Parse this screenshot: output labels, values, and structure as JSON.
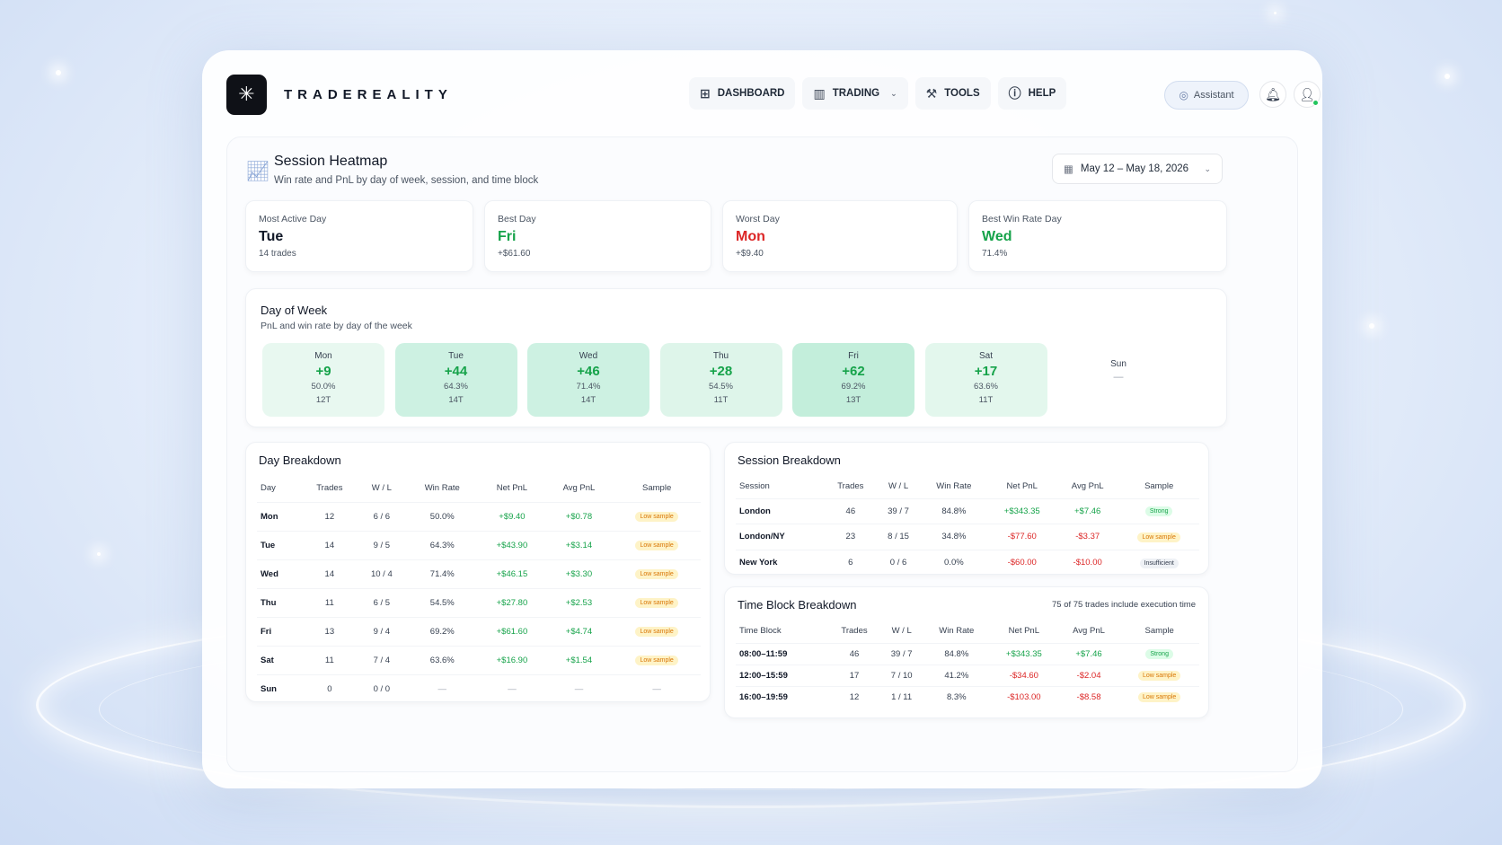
{
  "brand": {
    "name": "TRADEREALITY",
    "logo_icon": "sparkle-icon"
  },
  "nav": [
    {
      "label": "DASHBOARD",
      "icon": "grid-icon"
    },
    {
      "label": "TRADING",
      "icon": "chart-icon",
      "dropdown": true
    },
    {
      "label": "TOOLS",
      "icon": "wrench-icon"
    },
    {
      "label": "HELP",
      "icon": "help-icon"
    }
  ],
  "header": {
    "assistant_label": "Assistant"
  },
  "page": {
    "title": "Session Heatmap",
    "subtitle": "Win rate and PnL by day of week, session, and time block",
    "date_range": "May 12 – May 18, 2026"
  },
  "kpis": [
    {
      "label": "Most Active Day",
      "value": "Tue",
      "sub": "14 trades",
      "color": "#111827"
    },
    {
      "label": "Best Day",
      "value": "Fri",
      "sub": "+$61.60",
      "color": "#16a34a"
    },
    {
      "label": "Worst Day",
      "value": "Mon",
      "sub": "+$9.40",
      "color": "#dc2626"
    },
    {
      "label": "Best Win Rate Day",
      "value": "Wed",
      "sub": "71.4%",
      "color": "#16a34a"
    }
  ],
  "day_of_week": {
    "title": "Day of Week",
    "subtitle": "PnL and win rate by day of the week",
    "days": [
      {
        "day": "Mon",
        "pnl": "+9",
        "win": "50.0%",
        "trades": "12T",
        "bg": "#e8f8f0"
      },
      {
        "day": "Tue",
        "pnl": "+44",
        "win": "64.3%",
        "trades": "14T",
        "bg": "#cdf1e2"
      },
      {
        "day": "Wed",
        "pnl": "+46",
        "win": "71.4%",
        "trades": "14T",
        "bg": "#cdf1e2"
      },
      {
        "day": "Thu",
        "pnl": "+28",
        "win": "54.5%",
        "trades": "11T",
        "bg": "#def5ea"
      },
      {
        "day": "Fri",
        "pnl": "+62",
        "win": "69.2%",
        "trades": "13T",
        "bg": "#c3eedb"
      },
      {
        "day": "Sat",
        "pnl": "+17",
        "win": "63.6%",
        "trades": "11T",
        "bg": "#e3f7ed"
      },
      {
        "day": "Sun",
        "pnl": "—",
        "win": "",
        "trades": "",
        "bg": "#ffffff"
      }
    ]
  },
  "day_breakdown": {
    "title": "Day Breakdown",
    "columns": [
      "Day",
      "Trades",
      "W / L",
      "Win Rate",
      "Net PnL",
      "Avg PnL",
      "Sample"
    ],
    "rows": [
      [
        "Mon",
        "12",
        "6 / 6",
        "50.0%",
        "+$9.40",
        "+$0.78",
        "Low sample"
      ],
      [
        "Tue",
        "14",
        "9 / 5",
        "64.3%",
        "+$43.90",
        "+$3.14",
        "Low sample"
      ],
      [
        "Wed",
        "14",
        "10 / 4",
        "71.4%",
        "+$46.15",
        "+$3.30",
        "Low sample"
      ],
      [
        "Thu",
        "11",
        "6 / 5",
        "54.5%",
        "+$27.80",
        "+$2.53",
        "Low sample"
      ],
      [
        "Fri",
        "13",
        "9 / 4",
        "69.2%",
        "+$61.60",
        "+$4.74",
        "Low sample"
      ],
      [
        "Sat",
        "11",
        "7 / 4",
        "63.6%",
        "+$16.90",
        "+$1.54",
        "Low sample"
      ],
      [
        "Sun",
        "0",
        "0 / 0",
        "—",
        "—",
        "—",
        "—"
      ]
    ]
  },
  "session_breakdown": {
    "title": "Session Breakdown",
    "columns": [
      "Session",
      "Trades",
      "W / L",
      "Win Rate",
      "Net PnL",
      "Avg PnL",
      "Sample"
    ],
    "rows": [
      [
        "London",
        "46",
        "39 / 7",
        "84.8%",
        "+$343.35",
        "+$7.46",
        "Strong"
      ],
      [
        "London/NY",
        "23",
        "8 / 15",
        "34.8%",
        "-$77.60",
        "-$3.37",
        "Low sample"
      ],
      [
        "New York",
        "6",
        "0 / 6",
        "0.0%",
        "-$60.00",
        "-$10.00",
        "Insufficient"
      ]
    ]
  },
  "time_block_breakdown": {
    "title": "Time Block Breakdown",
    "note": "75 of 75 trades include execution time",
    "columns": [
      "Time Block",
      "Trades",
      "W / L",
      "Win Rate",
      "Net PnL",
      "Avg PnL",
      "Sample"
    ],
    "rows": [
      [
        "08:00–11:59",
        "46",
        "39 / 7",
        "84.8%",
        "+$343.35",
        "+$7.46",
        "Strong"
      ],
      [
        "12:00–15:59",
        "17",
        "7 / 10",
        "41.2%",
        "-$34.60",
        "-$2.04",
        "Low sample"
      ],
      [
        "16:00–19:59",
        "12",
        "1 / 11",
        "8.3%",
        "-$103.00",
        "-$8.58",
        "Low sample"
      ]
    ]
  }
}
